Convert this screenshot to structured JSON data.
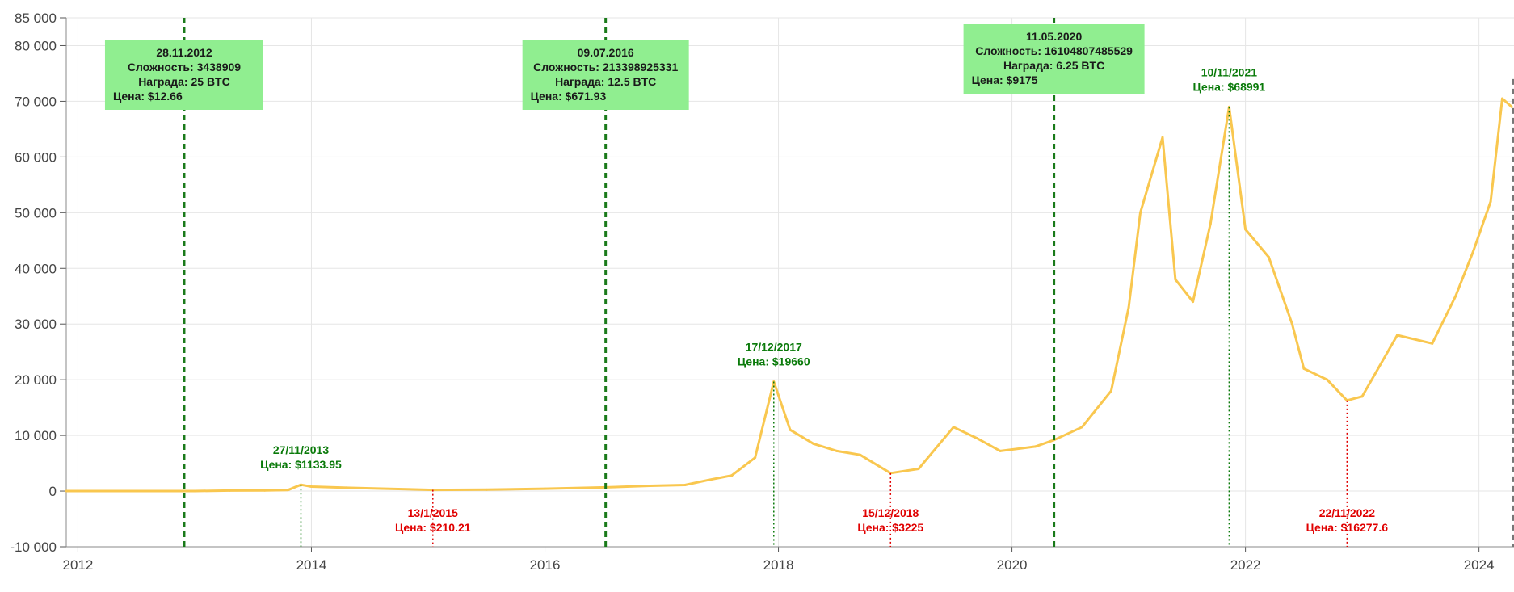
{
  "colors": {
    "price_line": "#f9c74f",
    "halving_line": "#1a7a1a",
    "halving_box": "#90ee90",
    "peak_text": "#0a7a0a",
    "low_text": "#e00000",
    "current_line": "#777777",
    "grid": "#e6e6e6"
  },
  "chart_data": {
    "type": "line",
    "title": "",
    "xlabel": "",
    "ylabel": "",
    "xlim": [
      2011.9,
      2024.3
    ],
    "ylim": [
      -10000,
      85000
    ],
    "grid": true,
    "x_ticks": [
      {
        "value": 2012,
        "label": "2012"
      },
      {
        "value": 2014,
        "label": "2014"
      },
      {
        "value": 2016,
        "label": "2016"
      },
      {
        "value": 2018,
        "label": "2018"
      },
      {
        "value": 2020,
        "label": "2020"
      },
      {
        "value": 2022,
        "label": "2022"
      },
      {
        "value": 2024,
        "label": "2024"
      }
    ],
    "y_ticks": [
      {
        "value": -10000,
        "label": "-10 000"
      },
      {
        "value": 0,
        "label": "0"
      },
      {
        "value": 10000,
        "label": "10 000"
      },
      {
        "value": 20000,
        "label": "20 000"
      },
      {
        "value": 30000,
        "label": "30 000"
      },
      {
        "value": 40000,
        "label": "40 000"
      },
      {
        "value": 50000,
        "label": "50 000"
      },
      {
        "value": 60000,
        "label": "60 000"
      },
      {
        "value": 70000,
        "label": "70 000"
      },
      {
        "value": 80000,
        "label": "80 000"
      },
      {
        "value": 85000,
        "label": "85 000"
      }
    ],
    "series": [
      {
        "x": [
          2011.9,
          2012.5,
          2013.0,
          2013.3,
          2013.6,
          2013.8,
          2013.91,
          2014.0,
          2014.3,
          2014.6,
          2015.04,
          2015.5,
          2016.0,
          2016.52,
          2016.9,
          2017.2,
          2017.4,
          2017.6,
          2017.8,
          2017.96,
          2018.1,
          2018.3,
          2018.5,
          2018.7,
          2018.96,
          2019.2,
          2019.5,
          2019.7,
          2019.9,
          2020.2,
          2020.36,
          2020.6,
          2020.85,
          2021.0,
          2021.1,
          2021.29,
          2021.4,
          2021.55,
          2021.7,
          2021.86,
          2022.0,
          2022.2,
          2022.4,
          2022.5,
          2022.7,
          2022.87,
          2023.0,
          2023.3,
          2023.6,
          2023.8,
          2023.95,
          2024.1,
          2024.2,
          2024.28
        ],
        "y": [
          5,
          6,
          13,
          100,
          120,
          200,
          1133.95,
          800,
          600,
          450,
          210.21,
          250,
          430,
          671.93,
          950,
          1100,
          2000,
          2800,
          6000,
          19660,
          11000,
          8500,
          7200,
          6500,
          3225,
          4000,
          11500,
          9500,
          7200,
          8000,
          9175,
          11500,
          18000,
          33000,
          50000,
          63500,
          38000,
          34000,
          48000,
          68991,
          47000,
          42000,
          30000,
          22000,
          20000,
          16277.6,
          17000,
          28000,
          26500,
          35000,
          43000,
          52000,
          70500,
          69000
        ]
      }
    ],
    "halvings": [
      {
        "x": 2012.91,
        "date": "28.11.2012",
        "difficulty": "Сложность: 3438909",
        "reward": "Награда: 25 BTC",
        "price": "Цена: $12.66"
      },
      {
        "x": 2016.52,
        "date": "09.07.2016",
        "difficulty": "Сложность: 213398925331",
        "reward": "Награда: 12.5 BTC",
        "price": "Цена: $671.93"
      },
      {
        "x": 2020.36,
        "date": "11.05.2020",
        "difficulty": "Сложность: 16104807485529",
        "reward": "Награда: 6.25 BTC",
        "price": "Цена: $9175"
      }
    ],
    "peaks": [
      {
        "x": 2013.91,
        "y": 1133.95,
        "date": "27/11/2013",
        "price": "Цена: $1133.95"
      },
      {
        "x": 2017.96,
        "y": 19660,
        "date": "17/12/2017",
        "price": "Цена: $19660"
      },
      {
        "x": 2021.86,
        "y": 68991,
        "date": "10/11/2021",
        "price": "Цена: $68991"
      }
    ],
    "lows": [
      {
        "x": 2015.04,
        "y": 210.21,
        "date": "13/1/2015",
        "price": "Цена: $210.21"
      },
      {
        "x": 2018.96,
        "y": 3225,
        "date": "15/12/2018",
        "price": "Цена: $3225"
      },
      {
        "x": 2022.87,
        "y": 16277.6,
        "date": "22/11/2022",
        "price": "Цена: $16277.6"
      }
    ],
    "current_marker_x": 2024.29
  }
}
